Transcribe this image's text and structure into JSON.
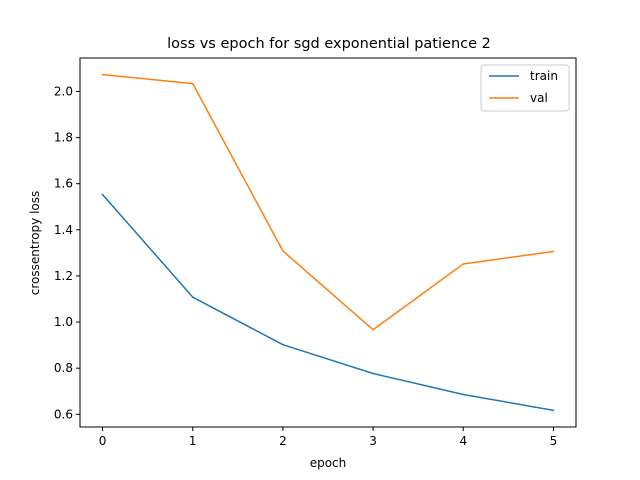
{
  "chart_data": {
    "type": "line",
    "title": "loss vs epoch for sgd exponential patience 2",
    "xlabel": "epoch",
    "ylabel": "crossentropy loss",
    "x": [
      0,
      1,
      2,
      3,
      4,
      5
    ],
    "xlim": [
      -0.25,
      5.25
    ],
    "ylim": [
      0.545,
      2.145
    ],
    "xticks": [
      0,
      1,
      2,
      3,
      4,
      5
    ],
    "yticks": [
      0.6,
      0.8,
      1.0,
      1.2,
      1.4,
      1.6,
      1.8,
      2.0
    ],
    "ytick_labels": [
      "0.6",
      "0.8",
      "1.0",
      "1.2",
      "1.4",
      "1.6",
      "1.8",
      "2.0"
    ],
    "grid": false,
    "legend": "top-right",
    "series": [
      {
        "name": "train",
        "color": "#1f77b4",
        "values": [
          1.553,
          1.108,
          0.902,
          0.777,
          0.686,
          0.617
        ]
      },
      {
        "name": "val",
        "color": "#ff7f0e",
        "values": [
          2.073,
          2.034,
          1.308,
          0.967,
          1.252,
          1.306
        ]
      }
    ]
  }
}
